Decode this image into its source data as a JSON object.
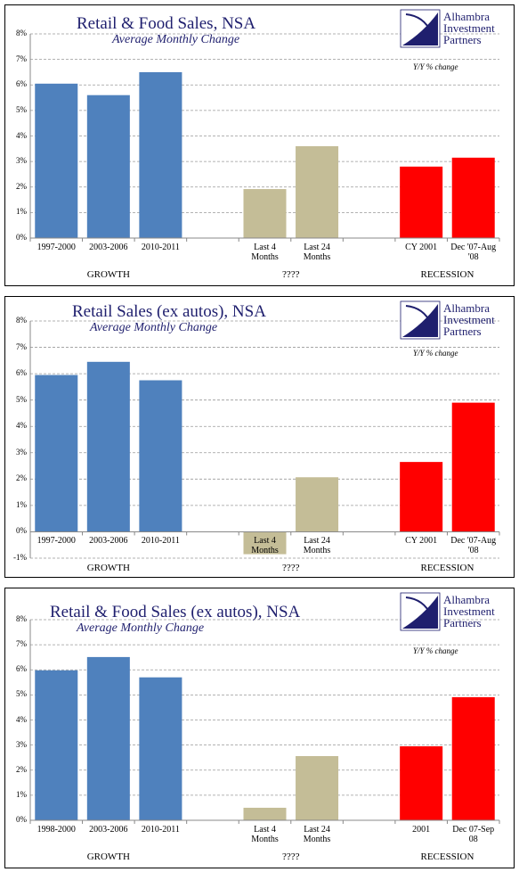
{
  "chart_data": [
    {
      "type": "bar",
      "title": "Retail & Food Sales, NSA",
      "subtitle": "Average Monthly Change",
      "annotation": "Y/Y % change",
      "brand": [
        "Alhambra",
        "Investment",
        "Partners"
      ],
      "categories": [
        "1997-2000",
        "2003-2006",
        "2010-2011",
        null,
        "Last 4 Months",
        "Last 24 Months",
        null,
        "CY 2001",
        "Dec '07-Aug '08"
      ],
      "values": [
        6.05,
        5.6,
        6.5,
        null,
        1.92,
        3.6,
        null,
        2.8,
        3.15
      ],
      "colors": [
        "#4f81bd",
        "#4f81bd",
        "#4f81bd",
        null,
        "#c4bd97",
        "#c4bd97",
        null,
        "#ff0000",
        "#ff0000"
      ],
      "groups": [
        "GROWTH",
        "????",
        "RECESSION"
      ],
      "ylim": [
        0,
        8
      ],
      "yticks": [
        {
          "value": 0,
          "label": "0%"
        },
        {
          "value": 1,
          "label": "1%"
        },
        {
          "value": 2,
          "label": "2%"
        },
        {
          "value": 3,
          "label": "3%"
        },
        {
          "value": 4,
          "label": "4%"
        },
        {
          "value": 5,
          "label": "5%"
        },
        {
          "value": 6,
          "label": "6%"
        },
        {
          "value": 7,
          "label": "7%"
        },
        {
          "value": 8,
          "label": "8%"
        }
      ],
      "grid": true
    },
    {
      "type": "bar",
      "title": "Retail Sales (ex autos), NSA",
      "subtitle": "Average Monthly Change",
      "annotation": "Y/Y % change",
      "brand": [
        "Alhambra",
        "Investment",
        "Partners"
      ],
      "categories": [
        "1997-2000",
        "2003-2006",
        "2010-2011",
        null,
        "Last 4 Months",
        "Last 24 Months",
        null,
        "CY 2001",
        "Dec '07-Aug '08"
      ],
      "values": [
        5.95,
        6.45,
        5.75,
        null,
        -0.85,
        2.07,
        null,
        2.65,
        4.9
      ],
      "colors": [
        "#4f81bd",
        "#4f81bd",
        "#4f81bd",
        null,
        "#c4bd97",
        "#c4bd97",
        null,
        "#ff0000",
        "#ff0000"
      ],
      "groups": [
        "GROWTH",
        "????",
        "RECESSION"
      ],
      "ylim": [
        -1,
        8
      ],
      "yticks": [
        {
          "value": -1,
          "label": "-1%"
        },
        {
          "value": 0,
          "label": "0%"
        },
        {
          "value": 1,
          "label": "1%"
        },
        {
          "value": 2,
          "label": "2%"
        },
        {
          "value": 3,
          "label": "3%"
        },
        {
          "value": 4,
          "label": "4%"
        },
        {
          "value": 5,
          "label": "5%"
        },
        {
          "value": 6,
          "label": "6%"
        },
        {
          "value": 7,
          "label": "7%"
        },
        {
          "value": 8,
          "label": "8%"
        }
      ],
      "grid": true
    },
    {
      "type": "bar",
      "title": "Retail & Food Sales (ex autos), NSA",
      "subtitle": "Average Monthly Change",
      "annotation": "Y/Y % change",
      "brand": [
        "Alhambra",
        "Investment",
        "Partners"
      ],
      "categories": [
        "1998-2000",
        "2003-2006",
        "2010-2011",
        null,
        "Last 4 Months",
        "Last 24 Months",
        null,
        "2001",
        "Dec 07-Sep 08"
      ],
      "values": [
        5.98,
        6.51,
        5.7,
        null,
        0.5,
        2.56,
        null,
        2.95,
        4.91
      ],
      "colors": [
        "#4f81bd",
        "#4f81bd",
        "#4f81bd",
        null,
        "#c4bd97",
        "#c4bd97",
        null,
        "#ff0000",
        "#ff0000"
      ],
      "groups": [
        "GROWTH",
        "????",
        "RECESSION"
      ],
      "ylim": [
        0,
        8
      ],
      "yticks": [
        {
          "value": 0,
          "label": "0%"
        },
        {
          "value": 1,
          "label": "1%"
        },
        {
          "value": 2,
          "label": "2%"
        },
        {
          "value": 3,
          "label": "3%"
        },
        {
          "value": 4,
          "label": "4%"
        },
        {
          "value": 5,
          "label": "5%"
        },
        {
          "value": 6,
          "label": "6%"
        },
        {
          "value": 7,
          "label": "7%"
        },
        {
          "value": 8,
          "label": "8%"
        }
      ],
      "grid": true
    }
  ]
}
